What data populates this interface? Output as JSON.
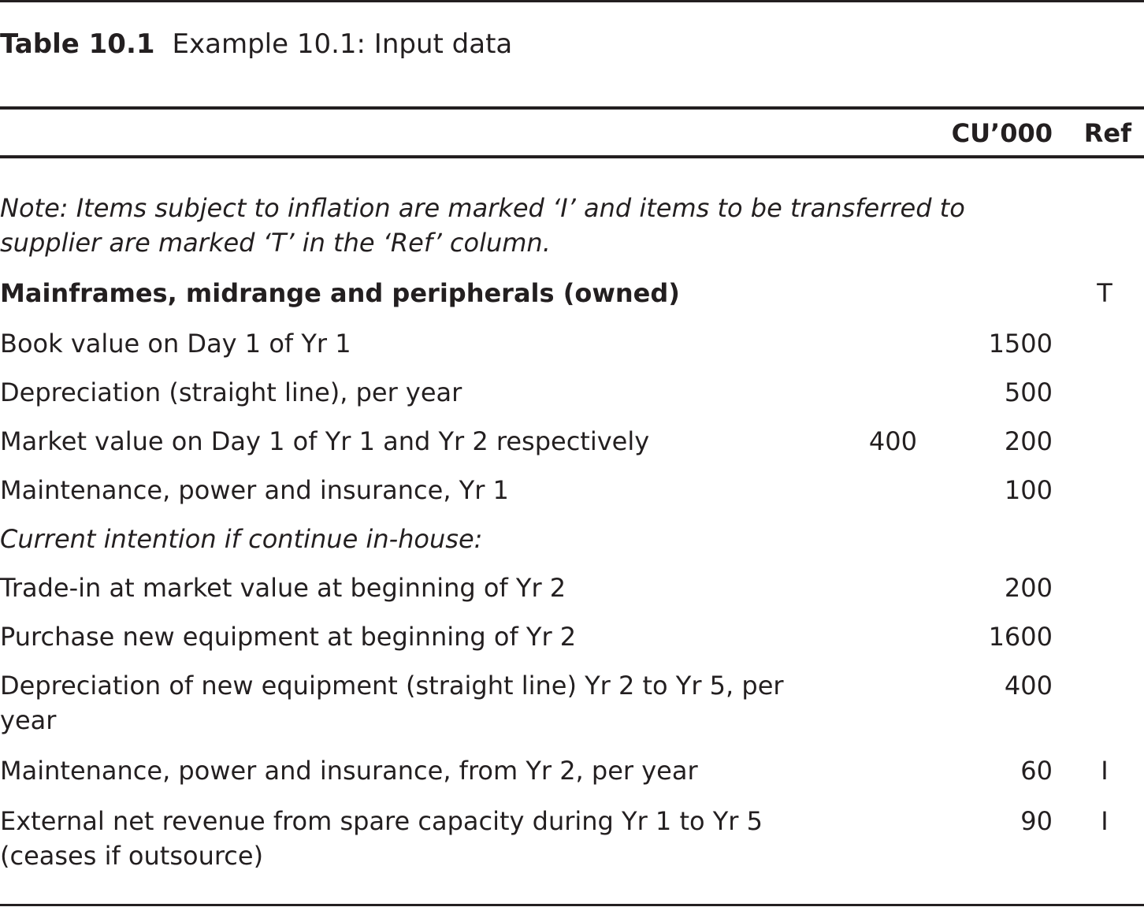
{
  "caption": {
    "label": "Table 10.1",
    "title": "Example 10.1: Input data"
  },
  "header": {
    "col_value": "CU’000",
    "col_ref": "Ref"
  },
  "note": "Note: Items subject to inflation are marked ‘I’ and items to be transferred to supplier are marked ‘T’ in the ‘Ref’ column.",
  "rows": [
    {
      "desc": "Mainframes, midrange and peripherals (owned)",
      "v1": "",
      "v2": "",
      "ref": "T"
    },
    {
      "desc": "Book value on Day 1 of Yr 1",
      "v1": "",
      "v2": "1500",
      "ref": ""
    },
    {
      "desc": "Depreciation (straight line), per year",
      "v1": "",
      "v2": "500",
      "ref": ""
    },
    {
      "desc": "Market value on Day 1 of Yr 1 and Yr 2 respectively",
      "v1": "400",
      "v2": "200",
      "ref": ""
    },
    {
      "desc": "Maintenance, power and insurance, Yr 1",
      "v1": "",
      "v2": "100",
      "ref": ""
    },
    {
      "desc": "Current intention if continue in-house:",
      "v1": "",
      "v2": "",
      "ref": ""
    },
    {
      "desc": "Trade-in at market value at beginning of Yr 2",
      "v1": "",
      "v2": "200",
      "ref": ""
    },
    {
      "desc": "Purchase new equipment at beginning of Yr 2",
      "v1": "",
      "v2": "1600",
      "ref": ""
    },
    {
      "desc": "Depreciation of new equipment (straight line) Yr 2 to Yr 5, per year",
      "v1": "",
      "v2": "400",
      "ref": ""
    },
    {
      "desc": "Maintenance, power and insurance, from Yr 2, per year",
      "v1": "",
      "v2": "60",
      "ref": "I"
    },
    {
      "desc": "External net revenue from spare capacity during Yr 1 to Yr 5 (ceases if outsource)",
      "v1": "",
      "v2": "90",
      "ref": "I"
    }
  ]
}
